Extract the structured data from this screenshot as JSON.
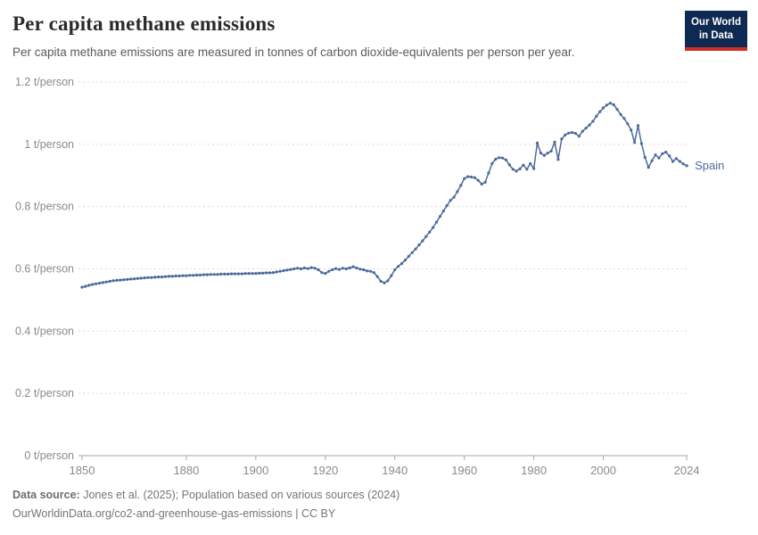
{
  "header": {
    "title": "Per capita methane emissions",
    "subtitle": "Per capita methane emissions are measured in tonnes of carbon dioxide-equivalents per person per year."
  },
  "logo": {
    "line1": "Our World",
    "line2": "in Data",
    "bg_color": "#0e2a52",
    "bar_color": "#cf2e27"
  },
  "footer": {
    "source_label": "Data source:",
    "source_text": " Jones et al. (2025); Population based on various sources (2024)",
    "link_text": "OurWorldinData.org/co2-and-greenhouse-gas-emissions | CC BY"
  },
  "chart_data": {
    "type": "line",
    "title": "Per capita methane emissions",
    "unit": "t/person",
    "xlim": [
      1850,
      2024
    ],
    "ylim": [
      0,
      1.2
    ],
    "grid": "horizontal-dashed",
    "legend_position": "end-of-line-label",
    "x_ticks": [
      1850,
      1880,
      1900,
      1920,
      1940,
      1960,
      1980,
      2000,
      2024
    ],
    "y_ticks": [
      {
        "v": 0,
        "label": "0 t/person"
      },
      {
        "v": 0.2,
        "label": "0.2 t/person"
      },
      {
        "v": 0.4,
        "label": "0.4 t/person"
      },
      {
        "v": 0.6,
        "label": "0.6 t/person"
      },
      {
        "v": 0.8,
        "label": "0.8 t/person"
      },
      {
        "v": 1,
        "label": "1 t/person"
      },
      {
        "v": 1.2,
        "label": "1.2 t/person"
      }
    ],
    "colors": {
      "line": "#4C6A9C",
      "grid": "#dcdcdc",
      "axis": "#a8a8a8",
      "tick_text": "#8a8a8a"
    },
    "series": [
      {
        "name": "Spain",
        "color": "#4C6A9C",
        "start_year": 1850,
        "end_year": 2024,
        "annual_values": [
          0.541,
          0.544,
          0.547,
          0.55,
          0.552,
          0.554,
          0.556,
          0.558,
          0.56,
          0.562,
          0.563,
          0.564,
          0.565,
          0.566,
          0.567,
          0.568,
          0.569,
          0.57,
          0.571,
          0.572,
          0.572,
          0.573,
          0.574,
          0.574,
          0.575,
          0.576,
          0.576,
          0.577,
          0.577,
          0.578,
          0.578,
          0.579,
          0.579,
          0.58,
          0.58,
          0.581,
          0.581,
          0.582,
          0.582,
          0.582,
          0.583,
          0.583,
          0.583,
          0.584,
          0.584,
          0.584,
          0.584,
          0.585,
          0.585,
          0.585,
          0.585,
          0.586,
          0.586,
          0.587,
          0.587,
          0.588,
          0.59,
          0.592,
          0.594,
          0.596,
          0.598,
          0.6,
          0.602,
          0.6,
          0.603,
          0.601,
          0.604,
          0.602,
          0.597,
          0.588,
          0.585,
          0.592,
          0.597,
          0.601,
          0.598,
          0.602,
          0.6,
          0.603,
          0.607,
          0.603,
          0.599,
          0.597,
          0.593,
          0.592,
          0.588,
          0.575,
          0.56,
          0.555,
          0.562,
          0.578,
          0.597,
          0.608,
          0.617,
          0.628,
          0.64,
          0.652,
          0.664,
          0.677,
          0.69,
          0.704,
          0.718,
          0.733,
          0.75,
          0.768,
          0.786,
          0.803,
          0.82,
          0.83,
          0.848,
          0.868,
          0.89,
          0.896,
          0.895,
          0.893,
          0.884,
          0.872,
          0.878,
          0.908,
          0.938,
          0.952,
          0.957,
          0.956,
          0.95,
          0.934,
          0.92,
          0.914,
          0.921,
          0.933,
          0.92,
          0.938,
          0.922,
          1.004,
          0.972,
          0.964,
          0.972,
          0.978,
          1.007,
          0.951,
          1.017,
          1.03,
          1.036,
          1.038,
          1.035,
          1.026,
          1.042,
          1.052,
          1.062,
          1.074,
          1.09,
          1.105,
          1.117,
          1.126,
          1.132,
          1.127,
          1.112,
          1.096,
          1.083,
          1.066,
          1.046,
          1.006,
          1.06,
          1.002,
          0.958,
          0.926,
          0.947,
          0.966,
          0.956,
          0.97,
          0.975,
          0.963,
          0.945,
          0.954,
          0.945,
          0.937,
          0.931
        ]
      }
    ]
  }
}
